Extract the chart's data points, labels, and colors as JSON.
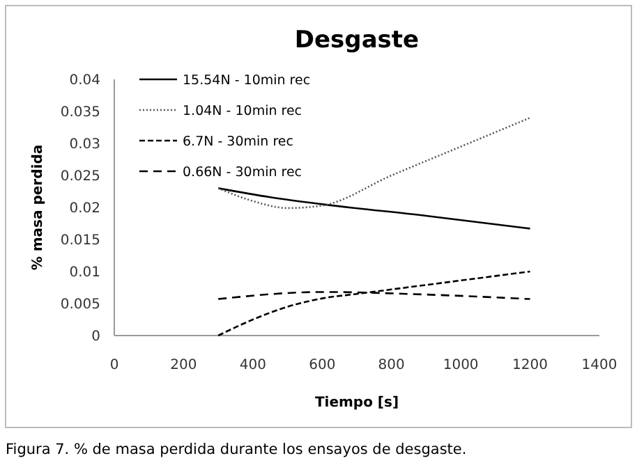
{
  "chart_data": {
    "type": "line",
    "title": "Desgaste",
    "xlabel": "Tiempo [s]",
    "ylabel": "% masa perdida",
    "annotations": [
      "Figura 7. % de masa perdida durante los ensayos de desgaste."
    ],
    "xlim": [
      0,
      1400
    ],
    "xticks": [
      0,
      200,
      400,
      600,
      800,
      1000,
      1200,
      1400
    ],
    "ylim": [
      0,
      0.04
    ],
    "yticks": [
      0,
      0.005,
      0.01,
      0.015,
      0.02,
      0.025,
      0.03,
      0.035,
      0.04
    ],
    "legend": "top left",
    "marker": "none",
    "series": [
      {
        "name": "15.54N - 10min rec",
        "color": "#000000",
        "line_style": "solid",
        "x": [
          300,
          450,
          600,
          900,
          1200
        ],
        "values": [
          0.023,
          0.0216,
          0.0205,
          0.0187,
          0.0167
        ]
      },
      {
        "name": "1.04N - 10min rec",
        "color": "#555555",
        "line_style": "dotted",
        "x": [
          300,
          400,
          500,
          600,
          800,
          1000,
          1200
        ],
        "values": [
          0.023,
          0.021,
          0.0199,
          0.0203,
          0.025,
          0.0295,
          0.034
        ]
      },
      {
        "name": "6.7N - 30min rec",
        "color": "#000000",
        "line_style": "dashed",
        "x": [
          300,
          400,
          500,
          600,
          700,
          800,
          1000,
          1200
        ],
        "values": [
          0,
          0.0025,
          0.0045,
          0.0058,
          0.0065,
          0.0072,
          0.0086,
          0.01
        ]
      },
      {
        "name": "0.66N - 30min rec",
        "color": "#000000",
        "line_style": "dashed",
        "x": [
          300,
          600,
          900,
          1200
        ],
        "values": [
          0.0057,
          0.0068,
          0.0064,
          0.0057
        ]
      }
    ]
  }
}
